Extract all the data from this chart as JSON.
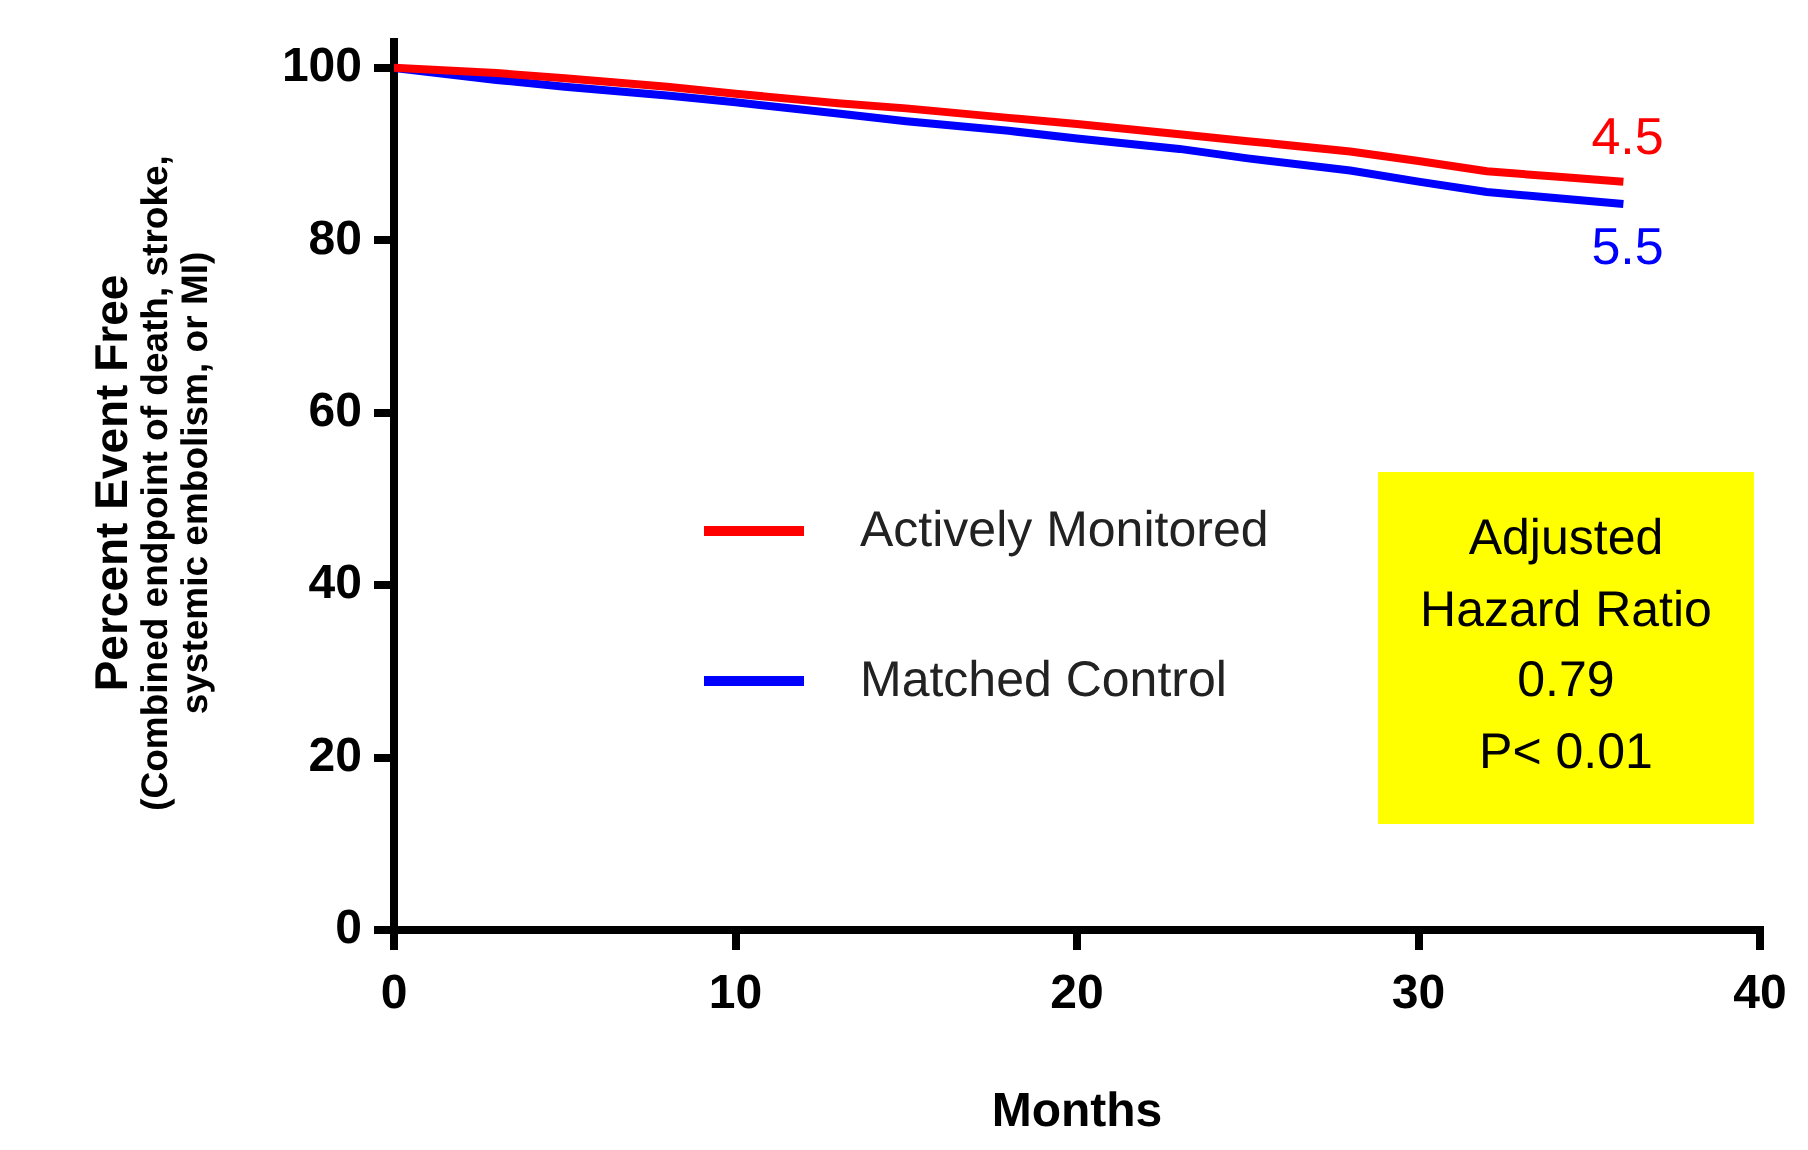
{
  "chart_data": {
    "type": "line",
    "ylabel": "Percent Event Free (Combined endpoint of death, stroke, systemic embolism, or MI)",
    "xlabel": "Months",
    "x": [
      0,
      3,
      5,
      8,
      10,
      13,
      15,
      18,
      20,
      23,
      25,
      28,
      30,
      32,
      34,
      36
    ],
    "series": [
      {
        "name": "Actively Monitored",
        "color": "#ff0000",
        "values": [
          100,
          99.4,
          98.8,
          97.8,
          97.0,
          95.9,
          95.3,
          94.2,
          93.5,
          92.3,
          91.5,
          90.3,
          89.2,
          88.0,
          87.4,
          86.8
        ]
      },
      {
        "name": "Matched Control",
        "color": "#0000ff",
        "values": [
          100,
          98.6,
          97.8,
          96.8,
          96.0,
          94.7,
          93.8,
          92.7,
          91.8,
          90.6,
          89.5,
          88.1,
          86.8,
          85.6,
          84.9,
          84.2
        ]
      }
    ],
    "xlim": [
      0,
      40
    ],
    "xticks": [
      0,
      10,
      20,
      30,
      40
    ],
    "ylim": [
      0,
      103
    ],
    "yticks": [
      0,
      20,
      40,
      60,
      80,
      100
    ],
    "grid": false,
    "legend": "bottom left",
    "marker": "none",
    "line_style": "solid",
    "annotations": [
      {
        "text": "4.5",
        "x": 36,
        "y": 86.8
      },
      {
        "text": "5.5",
        "x": 36,
        "y": 84.2
      },
      "Adjusted\nHazard Ratio\n0.79\nP< 0.01"
    ]
  }
}
